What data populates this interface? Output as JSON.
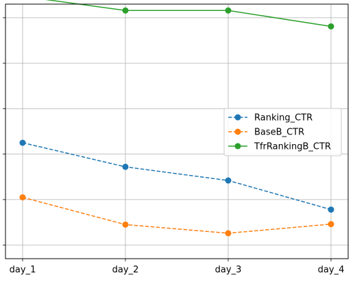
{
  "chart_data": {
    "type": "line",
    "title": "",
    "xlabel": "",
    "ylabel": "",
    "categories": [
      "day_1",
      "day_2",
      "day_3",
      "day_4"
    ],
    "ylim": [
      -0.3,
      5.3
    ],
    "grid": true,
    "legend_position": "center-right",
    "series": [
      {
        "name": "Ranking_CTR",
        "values": [
          2.25,
          1.72,
          1.42,
          0.78
        ],
        "color": "#1f77b4",
        "line_style": "dashed",
        "marker": "circle"
      },
      {
        "name": "BaseB_CTR",
        "values": [
          1.05,
          0.45,
          0.26,
          0.46
        ],
        "color": "#ff7f0e",
        "line_style": "dashed",
        "marker": "circle"
      },
      {
        "name": "TfrRankingB_CTR",
        "values": [
          5.47,
          5.16,
          5.16,
          4.81
        ],
        "color": "#2ca02c",
        "line_style": "solid",
        "marker": "circle"
      }
    ]
  }
}
